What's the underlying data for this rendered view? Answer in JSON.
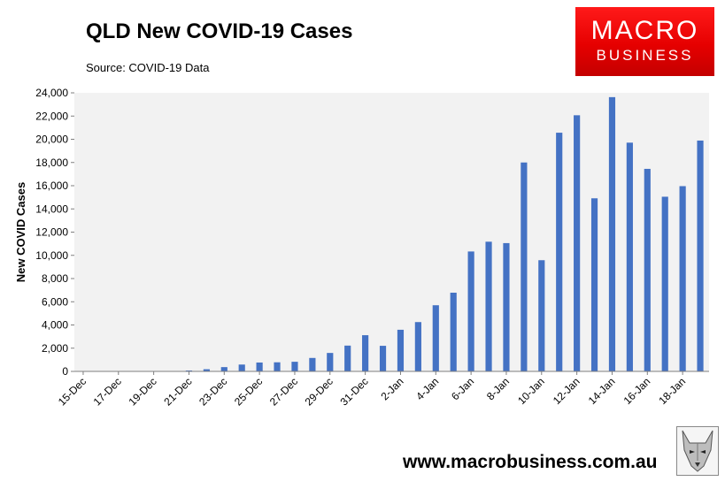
{
  "header": {
    "title": "QLD New COVID-19 Cases",
    "subtitle": "Source: COVID-19 Data"
  },
  "logo": {
    "line1": "MACRO",
    "line2": "BUSINESS"
  },
  "footer": {
    "url": "www.macrobusiness.com.au"
  },
  "colors": {
    "bar": "#4472c4",
    "plot_bg": "#f2f2f2",
    "logo_red": "#e60000"
  },
  "icons": {
    "logo": "macrobusiness-wolf-logo"
  },
  "chart_data": {
    "type": "bar",
    "title": "QLD New COVID-19 Cases",
    "ylabel": "New COVID Cases",
    "xlabel": "",
    "ylim": [
      0,
      24000
    ],
    "yticks": [
      0,
      2000,
      4000,
      6000,
      8000,
      10000,
      12000,
      14000,
      16000,
      18000,
      20000,
      22000,
      24000
    ],
    "ytick_labels": [
      "0",
      "2,000",
      "4,000",
      "6,000",
      "8,000",
      "10,000",
      "12,000",
      "14,000",
      "16,000",
      "18,000",
      "20,000",
      "22,000",
      "24,000"
    ],
    "xtick_labels": [
      "15-Dec",
      "17-Dec",
      "19-Dec",
      "21-Dec",
      "23-Dec",
      "25-Dec",
      "27-Dec",
      "29-Dec",
      "31-Dec",
      "2-Jan",
      "4-Jan",
      "6-Jan",
      "8-Jan",
      "10-Jan",
      "12-Jan",
      "14-Jan",
      "16-Jan",
      "18-Jan"
    ],
    "categories": [
      "15-Dec",
      "16-Dec",
      "17-Dec",
      "18-Dec",
      "19-Dec",
      "20-Dec",
      "21-Dec",
      "22-Dec",
      "23-Dec",
      "24-Dec",
      "25-Dec",
      "26-Dec",
      "27-Dec",
      "28-Dec",
      "29-Dec",
      "30-Dec",
      "31-Dec",
      "1-Jan",
      "2-Jan",
      "3-Jan",
      "4-Jan",
      "5-Jan",
      "6-Jan",
      "7-Jan",
      "8-Jan",
      "9-Jan",
      "10-Jan",
      "11-Jan",
      "12-Jan",
      "13-Jan",
      "14-Jan",
      "15-Jan",
      "16-Jan",
      "17-Jan",
      "18-Jan",
      "19-Jan"
    ],
    "values": [
      2,
      10,
      6,
      15,
      18,
      35,
      77,
      186,
      369,
      589,
      765,
      784,
      829,
      1158,
      1589,
      2222,
      3118,
      2204,
      3587,
      4249,
      5699,
      6781,
      10332,
      11174,
      11053,
      18000,
      9581,
      20566,
      22069,
      14914,
      23630,
      19709,
      17451,
      15050,
      15962,
      19889
    ],
    "grid": false,
    "legend": "none"
  }
}
